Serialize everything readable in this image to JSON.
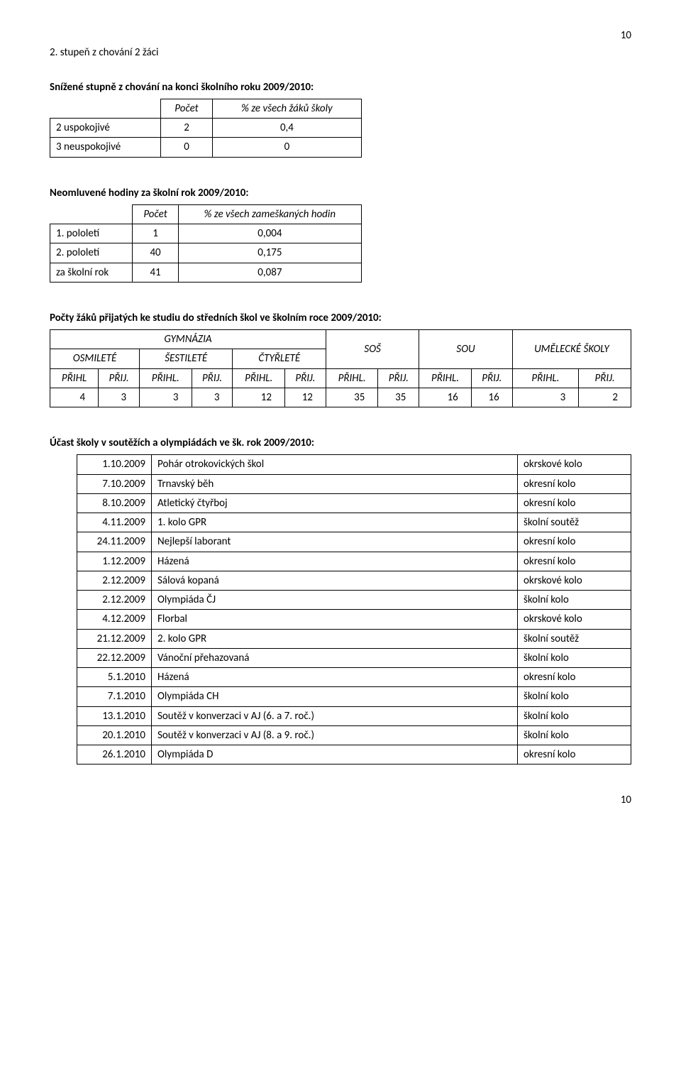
{
  "page_number_top": "10",
  "page_number_bottom": "10",
  "line_top": "2. stupeň z chování 2 žáci",
  "section1": {
    "heading": "Snížené stupně z chování na konci školního roku 2009/2010:",
    "col1": "Počet",
    "col2": "% ze všech žáků školy",
    "rows": [
      {
        "label": "2 uspokojivé",
        "count": "2",
        "pct": "0,4"
      },
      {
        "label": "3 neuspokojivé",
        "count": "0",
        "pct": "0"
      }
    ]
  },
  "section2": {
    "heading": "Neomluvené hodiny za školní rok 2009/2010:",
    "col1": "Počet",
    "col2": "% ze všech zameškaných hodin",
    "rows": [
      {
        "label": "1. pololetí",
        "count": "1",
        "pct": "0,004"
      },
      {
        "label": "2. pololetí",
        "count": "40",
        "pct": "0,175"
      },
      {
        "label": "za školní rok",
        "count": "41",
        "pct": "0,087"
      }
    ]
  },
  "section3": {
    "heading": "Počty žáků přijatých ke studiu do středních škol ve školním roce 2009/2010:",
    "group_gym": "GYMNÁZIA",
    "group_sos": "SOŠ",
    "group_sou": "SOU",
    "group_umel": "UMĚLECKÉ ŠKOLY",
    "sub_osm": "OSMILETÉ",
    "sub_sest": "ŠESTILETÉ",
    "sub_ctyr": "ČTYŘLETÉ",
    "col_prihl": "PŘIHL",
    "col_prihl_dot": "PŘIHL.",
    "col_prij": "PŘIJ.",
    "values": [
      "4",
      "3",
      "3",
      "3",
      "12",
      "12",
      "35",
      "35",
      "16",
      "16",
      "3",
      "2"
    ]
  },
  "section4": {
    "heading": "Účast školy v soutěžích a olympiádách ve šk. rok 2009/2010:",
    "rows": [
      {
        "date": "1.10.2009",
        "event": "Pohár otrokovických škol",
        "level": "okrskové kolo"
      },
      {
        "date": "7.10.2009",
        "event": "Trnavský běh",
        "level": "okresní kolo"
      },
      {
        "date": "8.10.2009",
        "event": "Atletický čtyřboj",
        "level": "okresní kolo"
      },
      {
        "date": "4.11.2009",
        "event": "1. kolo GPR",
        "level": "školní soutěž"
      },
      {
        "date": "24.11.2009",
        "event": "Nejlepší laborant",
        "level": "okresní kolo"
      },
      {
        "date": "1.12.2009",
        "event": "Házená",
        "level": "okresní kolo"
      },
      {
        "date": "2.12.2009",
        "event": "Sálová kopaná",
        "level": "okrskové kolo"
      },
      {
        "date": "2.12.2009",
        "event": "Olympiáda ČJ",
        "level": "školní kolo"
      },
      {
        "date": "4.12.2009",
        "event": "Florbal",
        "level": "okrskové kolo"
      },
      {
        "date": "21.12.2009",
        "event": "2. kolo GPR",
        "level": "školní soutěž"
      },
      {
        "date": "22.12.2009",
        "event": "Vánoční přehazovaná",
        "level": "školní kolo"
      },
      {
        "date": "5.1.2010",
        "event": "Házená",
        "level": "okresní kolo"
      },
      {
        "date": "7.1.2010",
        "event": "Olympiáda CH",
        "level": "školní kolo"
      },
      {
        "date": "13.1.2010",
        "event": "Soutěž v konverzaci v AJ (6. a 7. roč.)",
        "level": "školní kolo"
      },
      {
        "date": "20.1.2010",
        "event": "Soutěž v konverzaci v AJ (8. a 9. roč.)",
        "level": "školní kolo"
      },
      {
        "date": "26.1.2010",
        "event": "Olympiáda D",
        "level": "okresní kolo"
      }
    ]
  }
}
